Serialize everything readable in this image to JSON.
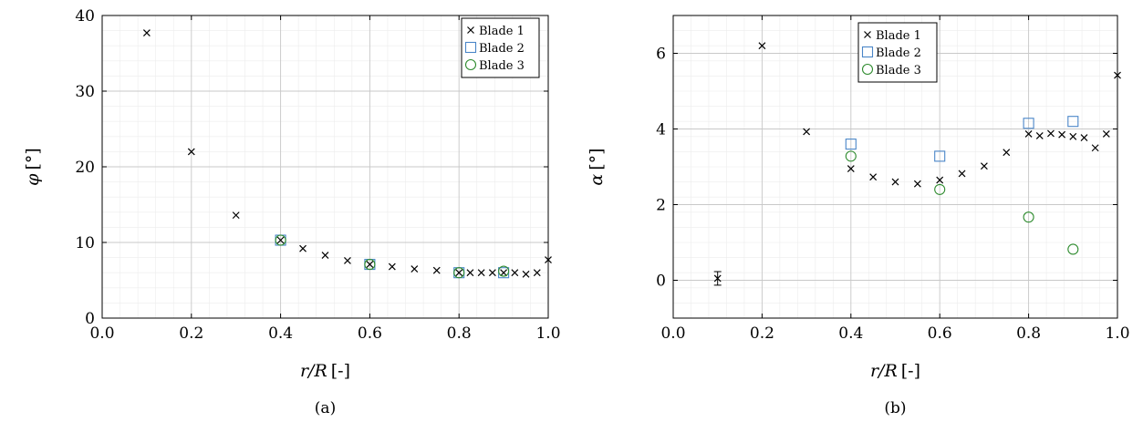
{
  "figure": {
    "caption_a": "(a)",
    "caption_b": "(b)"
  },
  "chart_data": [
    {
      "type": "scatter",
      "panel": "a",
      "xlabel_var": "r/R",
      "xlabel_unit": "[-]",
      "ylabel_var": "φ",
      "ylabel_unit": "[°]",
      "xlim": [
        0,
        1
      ],
      "ylim": [
        0,
        40
      ],
      "xticks": [
        "0.0",
        "0.2",
        "0.4",
        "0.6",
        "0.8",
        "1.0"
      ],
      "xtick_values": [
        0,
        0.2,
        0.4,
        0.6,
        0.8,
        1.0
      ],
      "yticks": [
        "0",
        "10",
        "20",
        "30",
        "40"
      ],
      "ytick_values": [
        0,
        10,
        20,
        30,
        40
      ],
      "grid": true,
      "legend_placement": "top-right",
      "series": [
        {
          "name": "Blade 1",
          "marker": "x",
          "color": "#000000",
          "x": [
            0.1,
            0.2,
            0.3,
            0.4,
            0.45,
            0.5,
            0.55,
            0.6,
            0.65,
            0.7,
            0.75,
            0.8,
            0.825,
            0.85,
            0.875,
            0.9,
            0.925,
            0.95,
            0.975,
            1.0
          ],
          "y": [
            37.7,
            22.0,
            13.6,
            10.3,
            9.2,
            8.3,
            7.6,
            7.1,
            6.8,
            6.5,
            6.3,
            6.0,
            6.0,
            6.0,
            6.0,
            6.0,
            6.0,
            5.8,
            6.0,
            7.7
          ]
        },
        {
          "name": "Blade 2",
          "marker": "square",
          "color": "#4a86c8",
          "x": [
            0.4,
            0.6,
            0.8,
            0.9
          ],
          "y": [
            10.3,
            7.1,
            6.0,
            6.0
          ]
        },
        {
          "name": "Blade 3",
          "marker": "circle",
          "color": "#2e8b2e",
          "x": [
            0.4,
            0.6,
            0.8,
            0.9
          ],
          "y": [
            10.3,
            7.1,
            6.0,
            6.2
          ]
        }
      ]
    },
    {
      "type": "scatter",
      "panel": "b",
      "xlabel_var": "r/R",
      "xlabel_unit": "[-]",
      "ylabel_var": "α",
      "ylabel_unit": "[°]",
      "xlim": [
        0,
        1
      ],
      "ylim": [
        -1,
        7
      ],
      "xticks": [
        "0.0",
        "0.2",
        "0.4",
        "0.6",
        "0.8",
        "1.0"
      ],
      "xtick_values": [
        0,
        0.2,
        0.4,
        0.6,
        0.8,
        1.0
      ],
      "yticks": [
        "0",
        "2",
        "4",
        "6"
      ],
      "ytick_values": [
        0,
        2,
        4,
        6
      ],
      "grid": true,
      "legend_placement": "top-left",
      "series": [
        {
          "name": "Blade 1",
          "marker": "x",
          "color": "#000000",
          "x": [
            0.1,
            0.2,
            0.3,
            0.4,
            0.45,
            0.5,
            0.55,
            0.6,
            0.65,
            0.7,
            0.75,
            0.8,
            0.825,
            0.85,
            0.875,
            0.9,
            0.925,
            0.95,
            0.975,
            1.0
          ],
          "y": [
            0.05,
            6.2,
            3.93,
            2.95,
            2.73,
            2.6,
            2.55,
            2.65,
            2.82,
            3.02,
            3.38,
            3.87,
            3.82,
            3.88,
            3.85,
            3.8,
            3.77,
            3.5,
            3.87,
            5.42
          ],
          "error_y": [
            0.18,
            0.02,
            0.02,
            0.02,
            0.02,
            0.02,
            0.02,
            0.02,
            0.02,
            0.02,
            0.02,
            0.02,
            0.02,
            0.02,
            0.02,
            0.02,
            0.02,
            0.02,
            0.02,
            0.02
          ]
        },
        {
          "name": "Blade 2",
          "marker": "square",
          "color": "#4a86c8",
          "x": [
            0.4,
            0.6,
            0.8,
            0.9
          ],
          "y": [
            3.6,
            3.28,
            4.15,
            4.2
          ]
        },
        {
          "name": "Blade 3",
          "marker": "circle",
          "color": "#2e8b2e",
          "x": [
            0.4,
            0.6,
            0.8,
            0.9
          ],
          "y": [
            3.28,
            2.4,
            1.67,
            0.82
          ]
        }
      ]
    }
  ]
}
